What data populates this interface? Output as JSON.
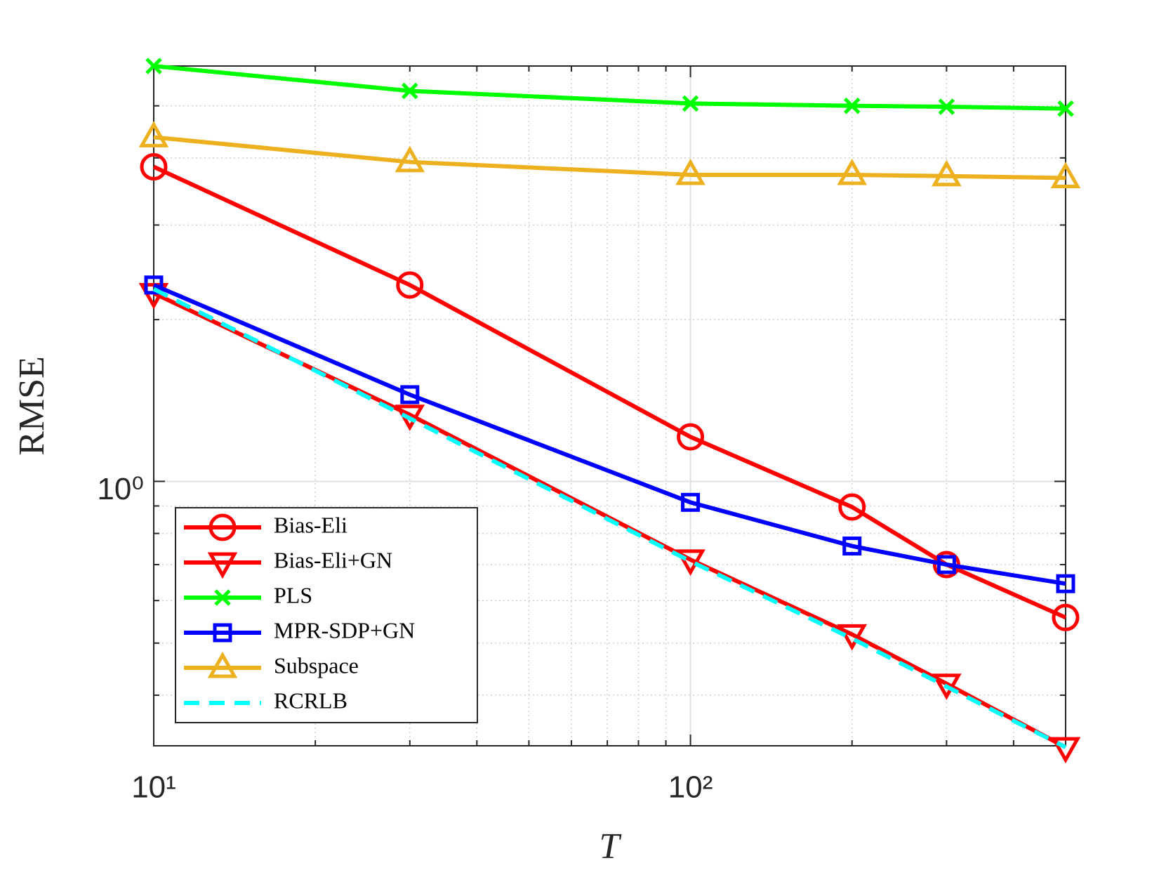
{
  "chart_data": {
    "type": "line",
    "xlabel": "T",
    "ylabel": "RMSE",
    "xscale": "log",
    "yscale": "log",
    "x": [
      10,
      30,
      100,
      200,
      300,
      500
    ],
    "series": [
      {
        "name": "Bias-Eli",
        "color": "#ff0000",
        "marker": "circle",
        "dash": false,
        "values": [
          3.85,
          2.32,
          1.21,
          0.896,
          0.7,
          0.558
        ]
      },
      {
        "name": "Bias-Eli+GN",
        "color": "#ff0000",
        "marker": "triangle-down",
        "dash": false,
        "values": [
          2.24,
          1.33,
          0.715,
          0.519,
          0.42,
          0.32
        ]
      },
      {
        "name": "PLS",
        "color": "#00ff00",
        "marker": "x",
        "dash": false,
        "values": [
          5.93,
          5.33,
          5.05,
          5.0,
          4.98,
          4.94
        ]
      },
      {
        "name": "MPR-SDP+GN",
        "color": "#0000ff",
        "marker": "square",
        "dash": false,
        "values": [
          2.32,
          1.45,
          0.914,
          0.758,
          0.7,
          0.645
        ]
      },
      {
        "name": "Subspace",
        "color": "#edb120",
        "marker": "triangle-up",
        "dash": false,
        "values": [
          4.37,
          3.93,
          3.72,
          3.72,
          3.7,
          3.67
        ]
      },
      {
        "name": "RCRLB",
        "color": "#00ffff",
        "marker": "none",
        "dash": true,
        "values": [
          2.28,
          1.31,
          0.71,
          0.51,
          0.415,
          0.32
        ]
      }
    ],
    "xlim": [
      10,
      500
    ],
    "ylim": [
      0.322,
      5.93
    ],
    "xticks": [
      {
        "value": 10,
        "label": "10¹"
      },
      {
        "value": 100,
        "label": "10²"
      }
    ],
    "yticks": [
      {
        "value": 1,
        "label": "10⁰"
      }
    ],
    "xminorticks": [
      20,
      30,
      40,
      50,
      60,
      70,
      80,
      90,
      200,
      300,
      400
    ],
    "yminorticks": [
      0.4,
      0.5,
      0.6,
      0.7,
      0.8,
      0.9,
      2,
      3,
      4,
      5
    ],
    "grid": true,
    "legend": "southwest"
  }
}
